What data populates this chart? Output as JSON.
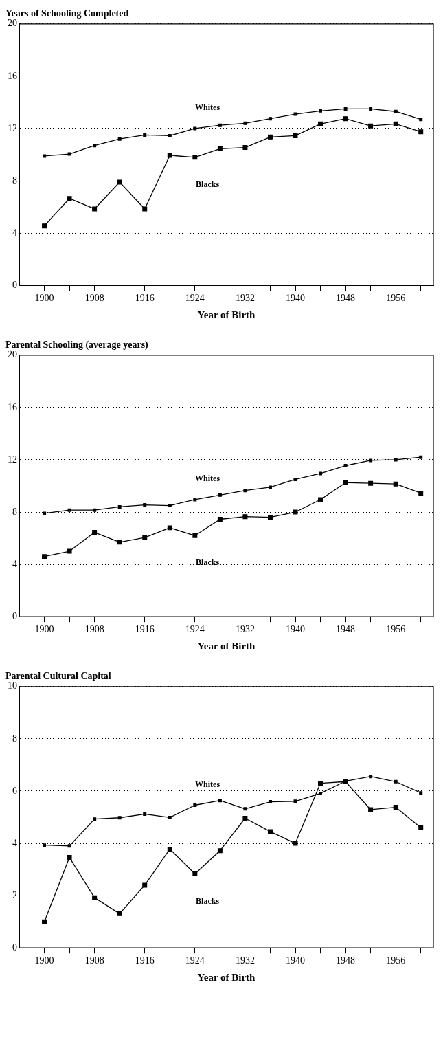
{
  "chart_data": [
    {
      "type": "line",
      "title": "Years of Schooling Completed",
      "xlabel": "Year of Birth",
      "x": [
        1900,
        1904,
        1908,
        1912,
        1916,
        1920,
        1924,
        1928,
        1932,
        1936,
        1940,
        1944,
        1948,
        1952,
        1956,
        1960
      ],
      "series": [
        {
          "name": "Whites",
          "color": "#000000",
          "values": [
            9.9,
            10.05,
            10.7,
            11.2,
            11.5,
            11.45,
            12.0,
            12.25,
            12.4,
            12.75,
            13.1,
            13.35,
            13.5,
            13.5,
            13.3,
            12.7
          ]
        },
        {
          "name": "Blacks",
          "color": "#000000",
          "values": [
            4.55,
            6.65,
            5.85,
            7.9,
            5.85,
            9.95,
            9.8,
            10.45,
            10.55,
            11.35,
            11.45,
            12.35,
            12.75,
            12.2,
            12.35,
            11.75
          ]
        }
      ],
      "xlim": [
        1896,
        1962
      ],
      "xticks": [
        1900,
        {
          "value": 1904,
          "label": null
        },
        1908,
        {
          "value": 1912,
          "label": null
        },
        1916,
        {
          "value": 1920,
          "label": null
        },
        1924,
        {
          "value": 1928,
          "label": null
        },
        1932,
        {
          "value": 1936,
          "label": null
        },
        1940,
        {
          "value": 1944,
          "label": null
        },
        1948,
        {
          "value": 1952,
          "label": null
        },
        1956,
        {
          "value": 1960,
          "label": null
        }
      ],
      "ylim": [
        0,
        20
      ],
      "yticks": [
        0,
        4,
        8,
        12,
        16,
        20
      ],
      "grid": "y",
      "legend": false,
      "marker": "square",
      "line_style": "solid"
    },
    {
      "type": "line",
      "title": "Parental Schooling (average years)",
      "xlabel": "Year of Birth",
      "x": [
        1900,
        1904,
        1908,
        1912,
        1916,
        1920,
        1924,
        1928,
        1932,
        1936,
        1940,
        1944,
        1948,
        1952,
        1956,
        1960
      ],
      "series": [
        {
          "name": "Whites",
          "color": "#000000",
          "values": [
            7.9,
            8.15,
            8.15,
            8.4,
            8.55,
            8.5,
            8.95,
            9.3,
            9.65,
            9.9,
            10.5,
            10.95,
            11.55,
            11.95,
            12.0,
            12.2
          ]
        },
        {
          "name": "Blacks",
          "color": "#000000",
          "values": [
            4.6,
            5.0,
            6.45,
            5.7,
            6.05,
            6.8,
            6.2,
            7.45,
            7.65,
            7.6,
            8.0,
            8.95,
            10.25,
            10.2,
            10.15,
            9.45
          ]
        }
      ],
      "xlim": [
        1896,
        1962
      ],
      "xticks": [
        1900,
        {
          "value": 1904,
          "label": null
        },
        1908,
        {
          "value": 1912,
          "label": null
        },
        1916,
        {
          "value": 1920,
          "label": null
        },
        1924,
        {
          "value": 1928,
          "label": null
        },
        1932,
        {
          "value": 1936,
          "label": null
        },
        1940,
        {
          "value": 1944,
          "label": null
        },
        1948,
        {
          "value": 1952,
          "label": null
        },
        1956,
        {
          "value": 1960,
          "label": null
        }
      ],
      "ylim": [
        0,
        20
      ],
      "yticks": [
        0,
        4,
        8,
        12,
        16,
        20
      ],
      "grid": "y",
      "legend": false,
      "marker": "square",
      "line_style": "solid"
    },
    {
      "type": "line",
      "title": "Parental Cultural Capital",
      "xlabel": "Year of Birth",
      "x": [
        1900,
        1904,
        1908,
        1912,
        1916,
        1920,
        1924,
        1928,
        1932,
        1936,
        1940,
        1944,
        1948,
        1952,
        1956,
        1960
      ],
      "series": [
        {
          "name": "Whites",
          "color": "#000000",
          "values": [
            3.93,
            3.9,
            4.93,
            4.98,
            5.12,
            4.99,
            5.46,
            5.64,
            5.32,
            5.59,
            5.61,
            5.91,
            6.38,
            6.56,
            6.36,
            5.93
          ]
        },
        {
          "name": "Blacks",
          "color": "#000000",
          "values": [
            1.0,
            3.46,
            1.92,
            1.31,
            2.4,
            3.78,
            2.83,
            3.72,
            4.96,
            4.45,
            4.0,
            6.3,
            6.36,
            5.29,
            5.38,
            4.6
          ]
        }
      ],
      "xlim": [
        1896,
        1962
      ],
      "xticks": [
        1900,
        {
          "value": 1904,
          "label": null
        },
        1908,
        {
          "value": 1912,
          "label": null
        },
        1916,
        {
          "value": 1920,
          "label": null
        },
        1924,
        {
          "value": 1928,
          "label": null
        },
        1932,
        {
          "value": 1936,
          "label": null
        },
        1940,
        {
          "value": 1944,
          "label": null
        },
        1948,
        {
          "value": 1952,
          "label": null
        },
        1956,
        {
          "value": 1960,
          "label": null
        }
      ],
      "ylim": [
        0,
        10
      ],
      "yticks": [
        0,
        2,
        4,
        6,
        8,
        10
      ],
      "grid": "y",
      "legend": false,
      "marker": "square",
      "line_style": "solid"
    }
  ]
}
